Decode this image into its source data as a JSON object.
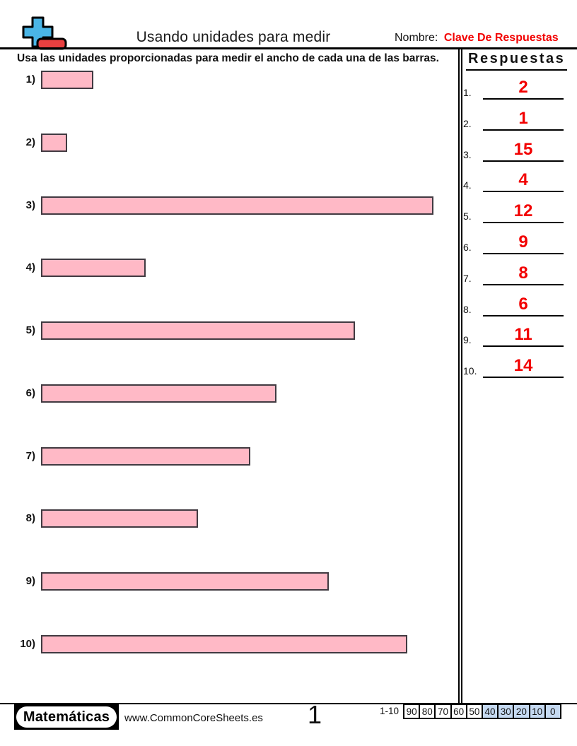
{
  "page": {
    "title": "Usando unidades para medir",
    "name_label": "Nombre:",
    "name_value": "Clave De Respuestas",
    "instruction": "Usa las unidades proporcionadas para medir el ancho de cada una de las barras."
  },
  "problems": [
    {
      "label": "1)",
      "units": 2
    },
    {
      "label": "2)",
      "units": 1
    },
    {
      "label": "3)",
      "units": 15
    },
    {
      "label": "4)",
      "units": 4
    },
    {
      "label": "5)",
      "units": 12
    },
    {
      "label": "6)",
      "units": 9
    },
    {
      "label": "7)",
      "units": 8
    },
    {
      "label": "8)",
      "units": 6
    },
    {
      "label": "9)",
      "units": 11
    },
    {
      "label": "10)",
      "units": 14
    }
  ],
  "answers": {
    "heading": "Respuestas",
    "items": [
      {
        "num": "1.",
        "value": "2"
      },
      {
        "num": "2.",
        "value": "1"
      },
      {
        "num": "3.",
        "value": "15"
      },
      {
        "num": "4.",
        "value": "4"
      },
      {
        "num": "5.",
        "value": "12"
      },
      {
        "num": "6.",
        "value": "9"
      },
      {
        "num": "7.",
        "value": "8"
      },
      {
        "num": "8.",
        "value": "6"
      },
      {
        "num": "9.",
        "value": "11"
      },
      {
        "num": "10.",
        "value": "14"
      }
    ]
  },
  "footer": {
    "brand": "Matemáticas",
    "website": "www.CommonCoreSheets.es",
    "page_number": "1",
    "score_label": "1-10",
    "score_cells": [
      {
        "value": "90",
        "highlight": false
      },
      {
        "value": "80",
        "highlight": false
      },
      {
        "value": "70",
        "highlight": false
      },
      {
        "value": "60",
        "highlight": false
      },
      {
        "value": "50",
        "highlight": false
      },
      {
        "value": "40",
        "highlight": true
      },
      {
        "value": "30",
        "highlight": true
      },
      {
        "value": "20",
        "highlight": true
      },
      {
        "value": "10",
        "highlight": true
      },
      {
        "value": "0",
        "highlight": true
      }
    ]
  },
  "colors": {
    "bar_fill": "#ffb9c6",
    "bar_border": "#413a41",
    "answer_red": "#f20000",
    "score_highlight": "#c5d9f1",
    "logo_blue": "#4ab5e6",
    "logo_red": "#e84040"
  },
  "icons": {
    "logo": "plus-minus-icon"
  }
}
